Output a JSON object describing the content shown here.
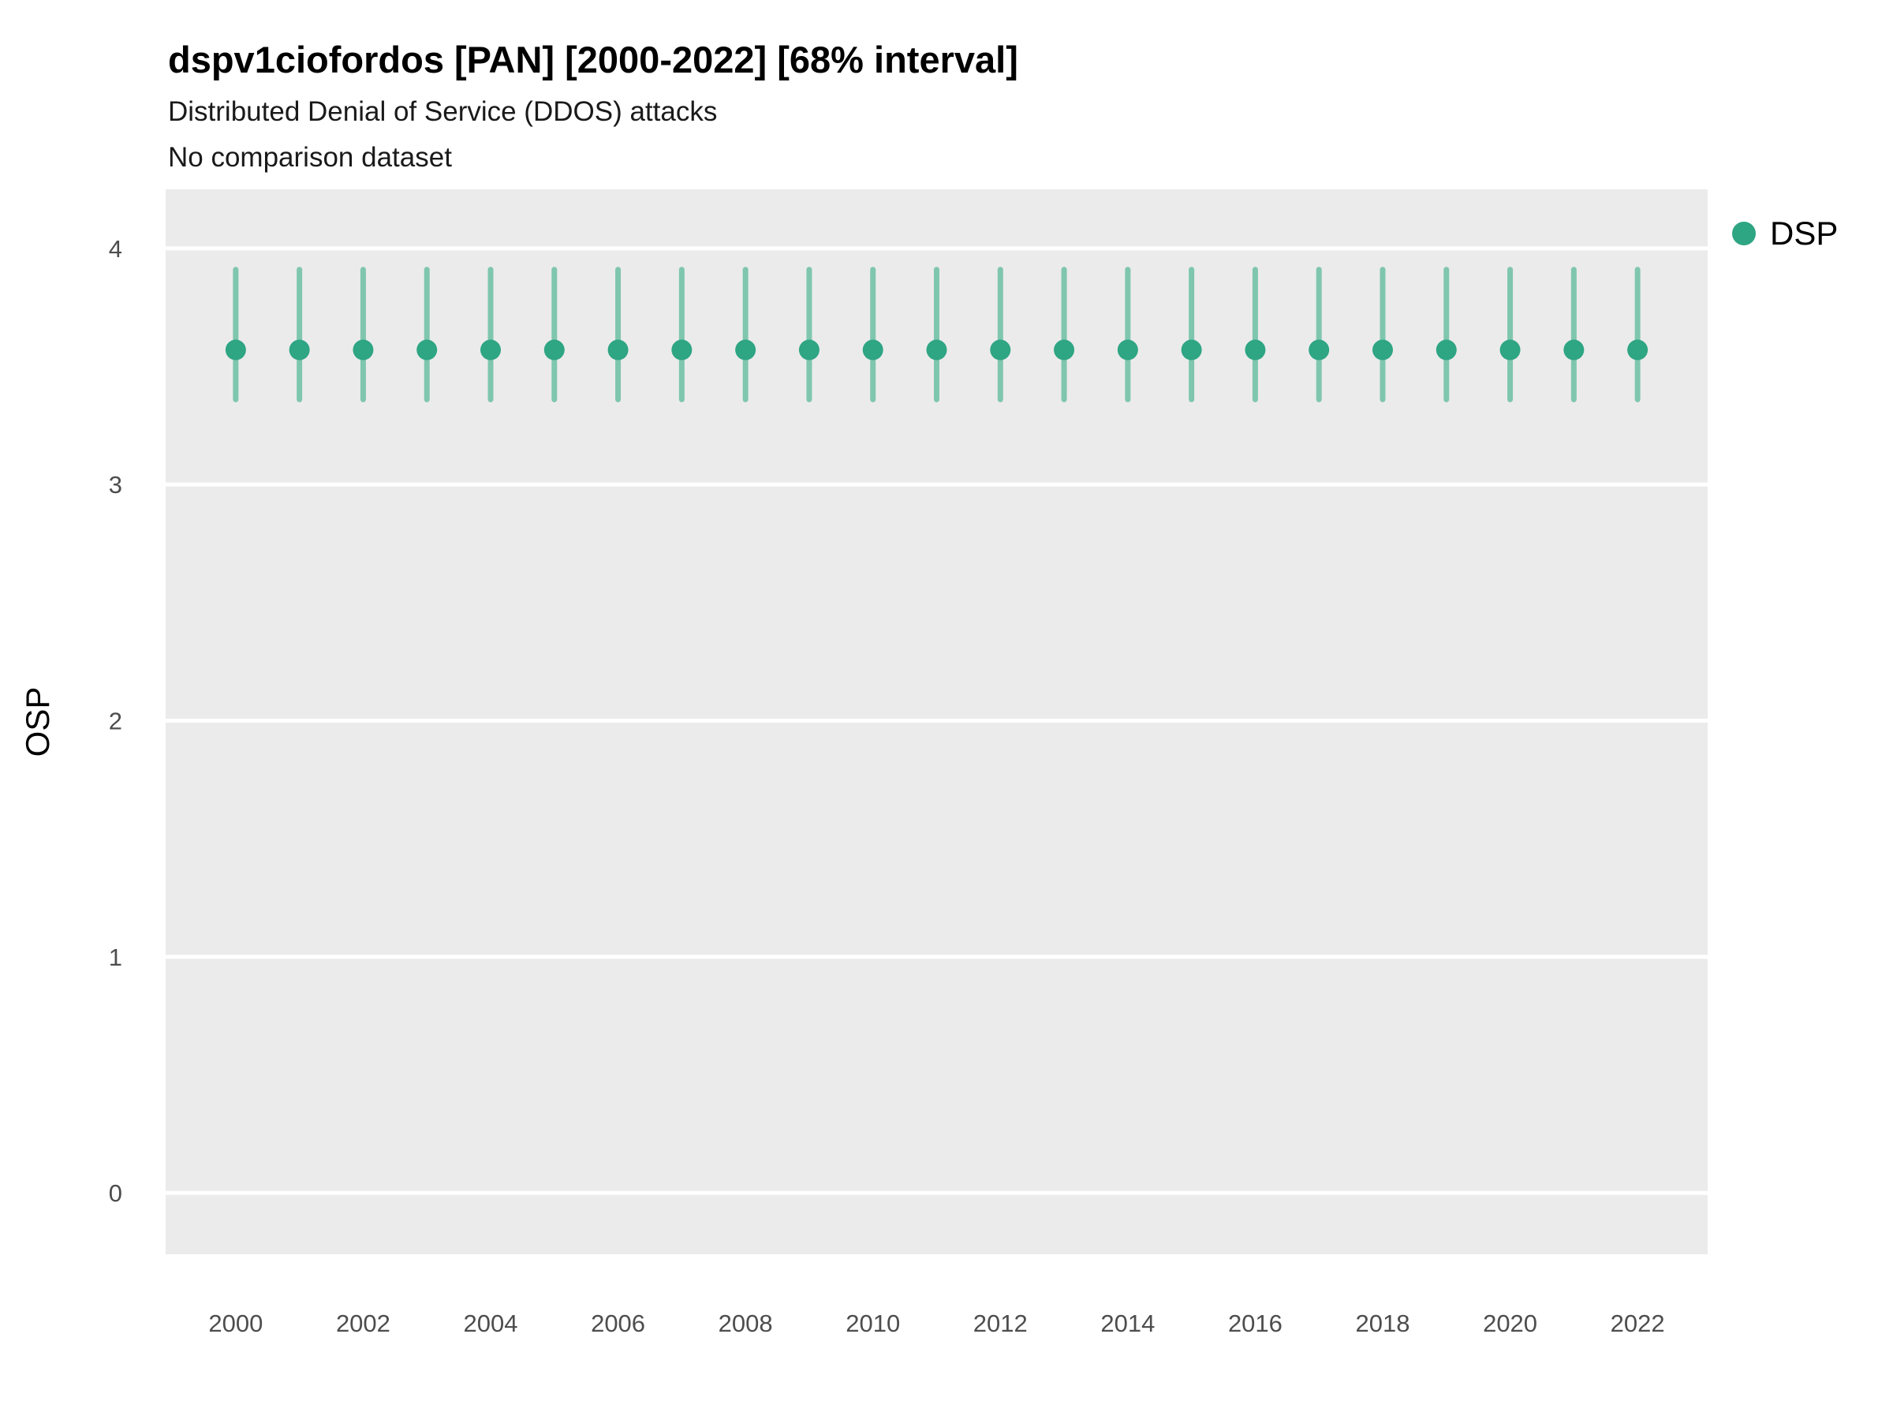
{
  "header": {
    "title": "dspv1ciofordos [PAN] [2000-2022] [68% interval]",
    "subtitle": "Distributed Denial of Service (DDOS) attacks",
    "note": "No comparison dataset"
  },
  "legend": {
    "items": [
      {
        "label": "DSP",
        "color": "#2ea583"
      }
    ]
  },
  "chart_data": {
    "type": "scatter",
    "title": "dspv1ciofordos [PAN] [2000-2022] [68% interval]",
    "subtitle": "Distributed Denial of Service (DDOS) attacks",
    "note": "No comparison dataset",
    "xlabel": "",
    "ylabel": "OSP",
    "x": [
      2000,
      2001,
      2002,
      2003,
      2004,
      2005,
      2006,
      2007,
      2008,
      2009,
      2010,
      2011,
      2012,
      2013,
      2014,
      2015,
      2016,
      2017,
      2018,
      2019,
      2020,
      2021,
      2022
    ],
    "series": [
      {
        "name": "DSP",
        "values": [
          3.57,
          3.57,
          3.57,
          3.57,
          3.57,
          3.57,
          3.57,
          3.57,
          3.57,
          3.57,
          3.57,
          3.57,
          3.57,
          3.57,
          3.57,
          3.57,
          3.57,
          3.57,
          3.57,
          3.57,
          3.57,
          3.57,
          3.57
        ],
        "lower": [
          3.36,
          3.36,
          3.36,
          3.36,
          3.36,
          3.36,
          3.36,
          3.36,
          3.36,
          3.36,
          3.36,
          3.36,
          3.36,
          3.36,
          3.36,
          3.36,
          3.36,
          3.36,
          3.36,
          3.36,
          3.36,
          3.36,
          3.36
        ],
        "upper": [
          3.91,
          3.91,
          3.91,
          3.91,
          3.91,
          3.91,
          3.91,
          3.91,
          3.91,
          3.91,
          3.91,
          3.91,
          3.91,
          3.91,
          3.91,
          3.91,
          3.91,
          3.91,
          3.91,
          3.91,
          3.91,
          3.91,
          3.91
        ]
      }
    ],
    "interval_level": "68%",
    "yticks": [
      0,
      1,
      2,
      3,
      4
    ],
    "xticks": [
      2000,
      2002,
      2004,
      2006,
      2008,
      2010,
      2012,
      2014,
      2016,
      2018,
      2020,
      2022
    ],
    "ylim": [
      -0.26,
      4.25
    ],
    "xlim": [
      1998.9,
      2023.1
    ],
    "grid": "major-horizontal-white",
    "legend_position": "right",
    "panel_bg": "#ebebeb",
    "grid_color": "#ffffff",
    "tick_label_color": "#4d4d4d",
    "point_color": "#2ea583",
    "interval_color": "#7fc6ae"
  }
}
